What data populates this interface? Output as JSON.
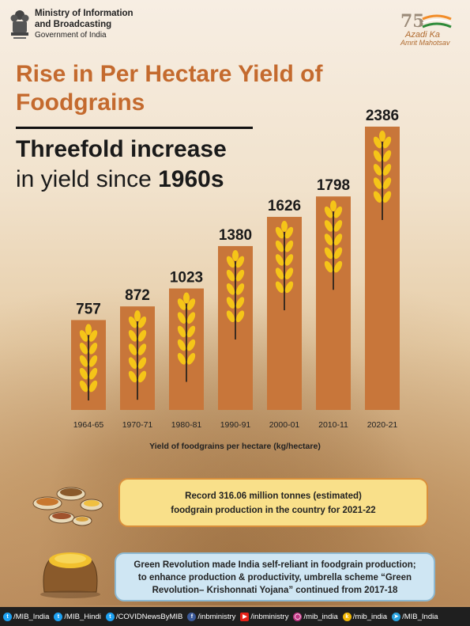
{
  "header": {
    "ministry_line1": "Ministry of Information",
    "ministry_line2": "and Broadcasting",
    "government": "Government of India",
    "logo_number": "75",
    "logo_line1": "Azadi Ka",
    "logo_line2": "Amrit Mahotsav"
  },
  "title": "Rise in Per Hectare Yield of Foodgrains",
  "subtitle_line1": "Threefold increase",
  "subtitle_line2_prefix": "in yield since ",
  "subtitle_line2_bold": "1960s",
  "chart_data": {
    "type": "bar",
    "categories": [
      "1964-65",
      "1970-71",
      "1980-81",
      "1990-91",
      "2000-01",
      "2010-11",
      "2020-21"
    ],
    "values": [
      757,
      872,
      1023,
      1380,
      1626,
      1798,
      2386
    ],
    "data_labels": [
      "757",
      "872",
      "1023",
      "1380",
      "1626",
      "1798",
      "2386"
    ],
    "xlabel": "Yield of foodgrains per hectare (kg/hectare)",
    "ylabel": "",
    "ylim": [
      0,
      2386
    ],
    "bar_color": "#c8763a",
    "icon_color": "#f5c518",
    "grid": false
  },
  "callouts": {
    "production_line1": "Record 316.06 million tonnes (estimated)",
    "production_line2": "foodgrain production in the country for 2021-22",
    "green_revolution_line1": "Green Revolution made India self-reliant in foodgrain production;",
    "green_revolution_line2": "to enhance production & productivity, umbrella scheme “Green",
    "green_revolution_line3": "Revolution– Krishonnati Yojana” continued from 2017-18"
  },
  "footer": [
    {
      "icon": "twitter-icon",
      "text": "/MIB_India"
    },
    {
      "icon": "twitter-icon",
      "text": "/MIB_Hindi"
    },
    {
      "icon": "twitter-icon",
      "text": "/COVIDNewsByMIB"
    },
    {
      "icon": "facebook-icon",
      "text": "/inbministry"
    },
    {
      "icon": "youtube-icon",
      "text": "/inbministry"
    },
    {
      "icon": "instagram-icon",
      "text": "/mib_india"
    },
    {
      "icon": "koo-icon",
      "text": "/mib_india"
    },
    {
      "icon": "telegram-icon",
      "text": "/MIB_India"
    }
  ],
  "colors": {
    "title": "#c46a2e",
    "bar": "#c8763a",
    "callout_yellow": "#f9e08a",
    "callout_blue": "#cfe6f3",
    "footer_bg": "#1f1f1f"
  }
}
